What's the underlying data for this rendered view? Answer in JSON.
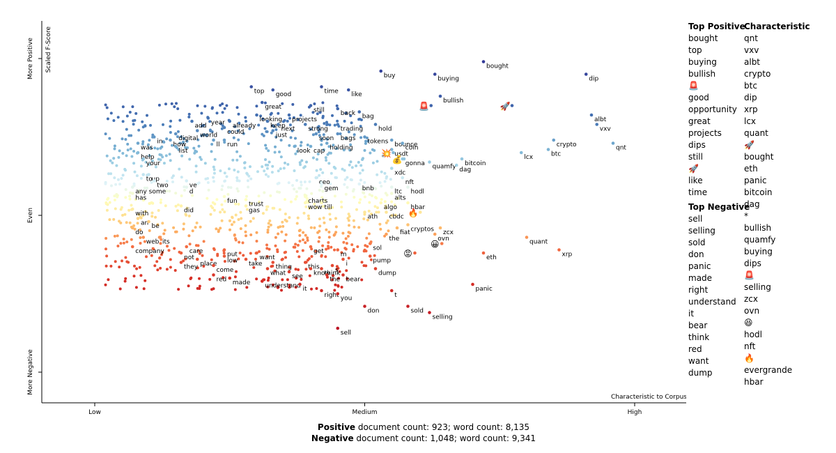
{
  "chart_data": {
    "type": "scatter",
    "title": "",
    "xlabel": "Characteristic to Corpus",
    "ylabel": "Scaled F-Score",
    "x_ticks": [
      "Low",
      "Medium",
      "High"
    ],
    "y_ticks": [
      "More Negative",
      "Even",
      "More Positive"
    ],
    "y_tick_marks": [
      0,
      0.5,
      1
    ],
    "xlim": [
      0,
      1
    ],
    "ylim": [
      0,
      1
    ],
    "grid": false,
    "color_scale": {
      "low": "#a50026",
      "mid": "#ffffbf",
      "high": "#313695",
      "description": "color reflects scaled F-score"
    },
    "labeled_points": [
      {
        "term": "bought",
        "x": 0.72,
        "y": 0.99
      },
      {
        "term": "buy",
        "x": 0.53,
        "y": 0.96
      },
      {
        "term": "buying",
        "x": 0.63,
        "y": 0.95
      },
      {
        "term": "dip",
        "x": 0.91,
        "y": 0.95
      },
      {
        "term": "top",
        "x": 0.29,
        "y": 0.91
      },
      {
        "term": "good",
        "x": 0.33,
        "y": 0.9
      },
      {
        "term": "time",
        "x": 0.42,
        "y": 0.91
      },
      {
        "term": "like",
        "x": 0.47,
        "y": 0.9
      },
      {
        "term": "bullish",
        "x": 0.64,
        "y": 0.88
      },
      {
        "term": "great",
        "x": 0.31,
        "y": 0.86
      },
      {
        "term": "still",
        "x": 0.4,
        "y": 0.85
      },
      {
        "term": "back",
        "x": 0.45,
        "y": 0.84
      },
      {
        "term": "bag",
        "x": 0.49,
        "y": 0.83
      },
      {
        "term": "looking",
        "x": 0.3,
        "y": 0.82
      },
      {
        "term": "projects",
        "x": 0.36,
        "y": 0.82
      },
      {
        "term": "keep",
        "x": 0.32,
        "y": 0.8
      },
      {
        "term": "next",
        "x": 0.34,
        "y": 0.79
      },
      {
        "term": "already",
        "x": 0.25,
        "y": 0.8
      },
      {
        "term": "year",
        "x": 0.21,
        "y": 0.81
      },
      {
        "term": "add",
        "x": 0.18,
        "y": 0.8
      },
      {
        "term": "strong",
        "x": 0.39,
        "y": 0.79
      },
      {
        "term": "trading",
        "x": 0.45,
        "y": 0.79
      },
      {
        "term": "hold",
        "x": 0.52,
        "y": 0.79
      },
      {
        "term": "could",
        "x": 0.24,
        "y": 0.78
      },
      {
        "term": "just",
        "x": 0.33,
        "y": 0.77
      },
      {
        "term": "world",
        "x": 0.19,
        "y": 0.77
      },
      {
        "term": "digital",
        "x": 0.15,
        "y": 0.76
      },
      {
        "term": "in",
        "x": 0.11,
        "y": 0.75
      },
      {
        "term": "soon",
        "x": 0.41,
        "y": 0.76
      },
      {
        "term": "bags",
        "x": 0.45,
        "y": 0.76
      },
      {
        "term": "tokens",
        "x": 0.5,
        "y": 0.75
      },
      {
        "term": "bounce",
        "x": 0.55,
        "y": 0.74
      },
      {
        "term": "how",
        "x": 0.14,
        "y": 0.74
      },
      {
        "term": "ll",
        "x": 0.22,
        "y": 0.74
      },
      {
        "term": "run",
        "x": 0.24,
        "y": 0.74
      },
      {
        "term": "was",
        "x": 0.08,
        "y": 0.73
      },
      {
        "term": "holding",
        "x": 0.43,
        "y": 0.73
      },
      {
        "term": "coin",
        "x": 0.57,
        "y": 0.73
      },
      {
        "term": "list",
        "x": 0.15,
        "y": 0.72
      },
      {
        "term": "look",
        "x": 0.37,
        "y": 0.72
      },
      {
        "term": "cap",
        "x": 0.4,
        "y": 0.72
      },
      {
        "term": "usdt",
        "x": 0.55,
        "y": 0.71
      },
      {
        "term": "help",
        "x": 0.08,
        "y": 0.7
      },
      {
        "term": "your",
        "x": 0.09,
        "y": 0.68
      },
      {
        "term": "gonna",
        "x": 0.57,
        "y": 0.68
      },
      {
        "term": "bitcoin",
        "x": 0.68,
        "y": 0.68
      },
      {
        "term": "quamfy",
        "x": 0.62,
        "y": 0.67
      },
      {
        "term": "dag",
        "x": 0.67,
        "y": 0.66
      },
      {
        "term": "xdc",
        "x": 0.55,
        "y": 0.65
      },
      {
        "term": "albt",
        "x": 0.92,
        "y": 0.82
      },
      {
        "term": "vxv",
        "x": 0.93,
        "y": 0.79
      },
      {
        "term": "crypto",
        "x": 0.85,
        "y": 0.74
      },
      {
        "term": "qnt",
        "x": 0.96,
        "y": 0.73
      },
      {
        "term": "btc",
        "x": 0.84,
        "y": 0.71
      },
      {
        "term": "lcx",
        "x": 0.79,
        "y": 0.7
      },
      {
        "term": "to",
        "x": 0.09,
        "y": 0.63
      },
      {
        "term": "up",
        "x": 0.1,
        "y": 0.63
      },
      {
        "term": "two",
        "x": 0.11,
        "y": 0.61
      },
      {
        "term": "ve",
        "x": 0.17,
        "y": 0.61
      },
      {
        "term": "ceo",
        "x": 0.41,
        "y": 0.62
      },
      {
        "term": "nft",
        "x": 0.57,
        "y": 0.62
      },
      {
        "term": "any some",
        "x": 0.07,
        "y": 0.59
      },
      {
        "term": "d",
        "x": 0.17,
        "y": 0.59
      },
      {
        "term": "gem",
        "x": 0.42,
        "y": 0.6
      },
      {
        "term": "bnb",
        "x": 0.49,
        "y": 0.6
      },
      {
        "term": "ltc",
        "x": 0.55,
        "y": 0.59
      },
      {
        "term": "hodl",
        "x": 0.58,
        "y": 0.59
      },
      {
        "term": "alts",
        "x": 0.55,
        "y": 0.57
      },
      {
        "term": "has",
        "x": 0.07,
        "y": 0.57
      },
      {
        "term": "fun",
        "x": 0.24,
        "y": 0.56
      },
      {
        "term": "trust",
        "x": 0.28,
        "y": 0.55
      },
      {
        "term": "charts",
        "x": 0.39,
        "y": 0.56
      },
      {
        "term": "algo",
        "x": 0.53,
        "y": 0.54
      },
      {
        "term": "hbar",
        "x": 0.58,
        "y": 0.54
      },
      {
        "term": "did",
        "x": 0.16,
        "y": 0.53
      },
      {
        "term": "gas",
        "x": 0.28,
        "y": 0.53
      },
      {
        "term": "wow",
        "x": 0.39,
        "y": 0.54
      },
      {
        "term": "till",
        "x": 0.42,
        "y": 0.54
      },
      {
        "term": "with",
        "x": 0.07,
        "y": 0.52
      },
      {
        "term": "ath",
        "x": 0.5,
        "y": 0.51
      },
      {
        "term": "cbdc",
        "x": 0.54,
        "y": 0.51
      },
      {
        "term": "an",
        "x": 0.08,
        "y": 0.49
      },
      {
        "term": "be",
        "x": 0.1,
        "y": 0.48
      },
      {
        "term": "cryptos",
        "x": 0.58,
        "y": 0.47
      },
      {
        "term": "zcx",
        "x": 0.64,
        "y": 0.46
      },
      {
        "term": "do",
        "x": 0.07,
        "y": 0.46
      },
      {
        "term": "fiat",
        "x": 0.56,
        "y": 0.46
      },
      {
        "term": "ovn",
        "x": 0.63,
        "y": 0.44
      },
      {
        "term": "the",
        "x": 0.54,
        "y": 0.44
      },
      {
        "term": "web",
        "x": 0.09,
        "y": 0.43
      },
      {
        "term": "its",
        "x": 0.12,
        "y": 0.43
      },
      {
        "term": "sol",
        "x": 0.51,
        "y": 0.41
      },
      {
        "term": "quant",
        "x": 0.8,
        "y": 0.43
      },
      {
        "term": "company",
        "x": 0.07,
        "y": 0.4
      },
      {
        "term": "care",
        "x": 0.17,
        "y": 0.4
      },
      {
        "term": "put",
        "x": 0.24,
        "y": 0.39
      },
      {
        "term": "get",
        "x": 0.4,
        "y": 0.4
      },
      {
        "term": "m",
        "x": 0.45,
        "y": 0.39
      },
      {
        "term": "xrp",
        "x": 0.86,
        "y": 0.39
      },
      {
        "term": "eth",
        "x": 0.72,
        "y": 0.38
      },
      {
        "term": "not",
        "x": 0.16,
        "y": 0.38
      },
      {
        "term": "low",
        "x": 0.24,
        "y": 0.37
      },
      {
        "term": "want",
        "x": 0.3,
        "y": 0.38
      },
      {
        "term": "i",
        "x": 0.46,
        "y": 0.36
      },
      {
        "term": "pump",
        "x": 0.51,
        "y": 0.37
      },
      {
        "term": "they",
        "x": 0.16,
        "y": 0.35
      },
      {
        "term": "place",
        "x": 0.19,
        "y": 0.36
      },
      {
        "term": "take",
        "x": 0.28,
        "y": 0.36
      },
      {
        "term": "thing",
        "x": 0.33,
        "y": 0.35
      },
      {
        "term": "this",
        "x": 0.39,
        "y": 0.35
      },
      {
        "term": "s",
        "x": 0.44,
        "y": 0.34
      },
      {
        "term": "come",
        "x": 0.22,
        "y": 0.34
      },
      {
        "term": "what",
        "x": 0.32,
        "y": 0.33
      },
      {
        "term": "know",
        "x": 0.4,
        "y": 0.33
      },
      {
        "term": "think",
        "x": 0.42,
        "y": 0.33
      },
      {
        "term": "dump",
        "x": 0.52,
        "y": 0.33
      },
      {
        "term": "see",
        "x": 0.36,
        "y": 0.32
      },
      {
        "term": "the",
        "x": 0.43,
        "y": 0.31
      },
      {
        "term": "bear",
        "x": 0.46,
        "y": 0.31
      },
      {
        "term": "red",
        "x": 0.22,
        "y": 0.31
      },
      {
        "term": "made",
        "x": 0.25,
        "y": 0.3
      },
      {
        "term": "understand",
        "x": 0.31,
        "y": 0.29
      },
      {
        "term": "it",
        "x": 0.38,
        "y": 0.28
      },
      {
        "term": "panic",
        "x": 0.7,
        "y": 0.28
      },
      {
        "term": "right",
        "x": 0.42,
        "y": 0.26
      },
      {
        "term": "t",
        "x": 0.55,
        "y": 0.26
      },
      {
        "term": "you",
        "x": 0.45,
        "y": 0.25
      },
      {
        "term": "don",
        "x": 0.5,
        "y": 0.21
      },
      {
        "term": "sold",
        "x": 0.58,
        "y": 0.21
      },
      {
        "term": "selling",
        "x": 0.62,
        "y": 0.19
      },
      {
        "term": "sell",
        "x": 0.45,
        "y": 0.14
      }
    ],
    "emoji_points": [
      {
        "term": "🚨",
        "x": 0.61,
        "y": 0.85
      },
      {
        "term": "🚀",
        "x": 0.76,
        "y": 0.85
      },
      {
        "term": "💥",
        "x": 0.54,
        "y": 0.7
      },
      {
        "term": "💰",
        "x": 0.56,
        "y": 0.68
      },
      {
        "term": "🔥",
        "x": 0.59,
        "y": 0.51
      },
      {
        "term": "😀",
        "x": 0.63,
        "y": 0.41
      },
      {
        "term": "😡",
        "x": 0.58,
        "y": 0.38
      }
    ]
  },
  "sidebar": {
    "top_positive_header": "Top Positive",
    "top_positive": [
      "bought",
      "top",
      "buying",
      "bullish",
      "🚨",
      "good",
      "opportunity",
      "great",
      "projects",
      "dips",
      "still",
      "🚀",
      "like",
      "time"
    ],
    "top_negative_header": "Top Negative",
    "top_negative": [
      "sell",
      "selling",
      "sold",
      "don",
      "panic",
      "made",
      "right",
      "understand",
      "it",
      "bear",
      "think",
      "red",
      "want",
      "dump"
    ],
    "characteristic_header": "Characteristic",
    "characteristic": [
      "qnt",
      "vxv",
      "albt",
      "crypto",
      "btc",
      "dip",
      "xrp",
      "lcx",
      "quant",
      "🚀",
      "bought",
      "eth",
      "panic",
      "bitcoin",
      "dag",
      "*",
      "bullish",
      "quamfy",
      "buying",
      "dips",
      "🚨",
      "selling",
      "zcx",
      "ovn",
      "😆",
      "hodl",
      "nft",
      "🔥",
      "evergrande",
      "hbar"
    ]
  },
  "footer": {
    "positive_label": "Positive",
    "positive_stats": " document count: 923; word count: 8,135",
    "negative_label": "Negative",
    "negative_stats": " document count: 1,048; word count: 9,341"
  }
}
